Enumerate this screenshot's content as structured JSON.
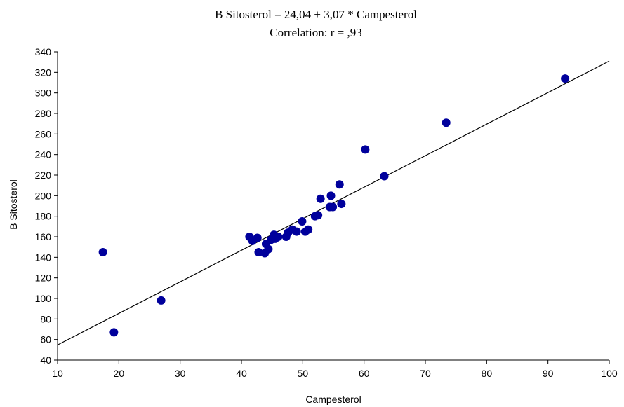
{
  "chart_data": {
    "type": "scatter",
    "title": "B Sitosterol = 24,04 + 3,07 * Campesterol",
    "subtitle": "Correlation: r = ,93",
    "xlabel": "Campesterol",
    "ylabel": "B Sitosterol",
    "xlim": [
      10,
      100
    ],
    "ylim": [
      40,
      340
    ],
    "xticks": [
      10,
      20,
      30,
      40,
      50,
      60,
      70,
      80,
      90,
      100
    ],
    "yticks": [
      40,
      60,
      80,
      100,
      120,
      140,
      160,
      180,
      200,
      220,
      240,
      260,
      280,
      300,
      320,
      340
    ],
    "grid": false,
    "marker_color": "#00009c",
    "line_color": "#000000",
    "fit_line": {
      "intercept": 24.04,
      "slope": 3.07
    },
    "points": [
      {
        "x": 17.4,
        "y": 145
      },
      {
        "x": 19.2,
        "y": 67
      },
      {
        "x": 26.9,
        "y": 98
      },
      {
        "x": 41.3,
        "y": 160
      },
      {
        "x": 41.8,
        "y": 156
      },
      {
        "x": 42.6,
        "y": 159
      },
      {
        "x": 42.8,
        "y": 145
      },
      {
        "x": 43.8,
        "y": 144
      },
      {
        "x": 44.0,
        "y": 153
      },
      {
        "x": 44.4,
        "y": 148
      },
      {
        "x": 44.8,
        "y": 157
      },
      {
        "x": 45.3,
        "y": 162
      },
      {
        "x": 45.5,
        "y": 158
      },
      {
        "x": 46.0,
        "y": 160
      },
      {
        "x": 47.3,
        "y": 160
      },
      {
        "x": 47.6,
        "y": 164
      },
      {
        "x": 48.3,
        "y": 167
      },
      {
        "x": 49.0,
        "y": 165
      },
      {
        "x": 49.9,
        "y": 175
      },
      {
        "x": 50.4,
        "y": 165
      },
      {
        "x": 50.9,
        "y": 167
      },
      {
        "x": 52.0,
        "y": 180
      },
      {
        "x": 52.5,
        "y": 181
      },
      {
        "x": 52.9,
        "y": 197
      },
      {
        "x": 54.4,
        "y": 189
      },
      {
        "x": 54.6,
        "y": 200
      },
      {
        "x": 54.9,
        "y": 189
      },
      {
        "x": 56.0,
        "y": 211
      },
      {
        "x": 56.3,
        "y": 192
      },
      {
        "x": 60.2,
        "y": 245
      },
      {
        "x": 63.3,
        "y": 219
      },
      {
        "x": 73.4,
        "y": 271
      },
      {
        "x": 92.8,
        "y": 314
      }
    ]
  }
}
